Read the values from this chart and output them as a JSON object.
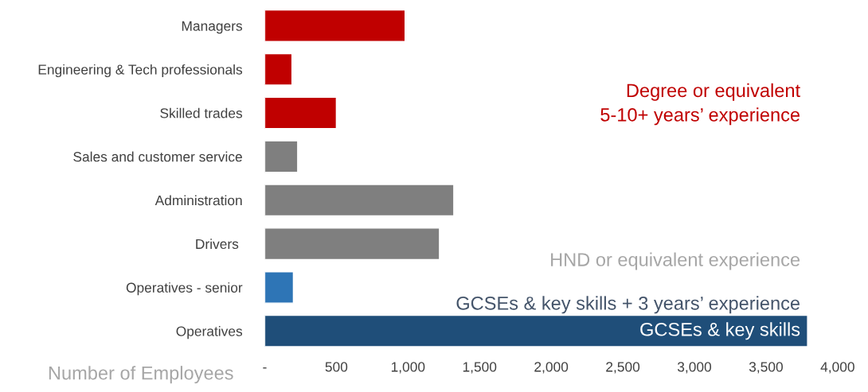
{
  "chart_data": {
    "type": "bar",
    "orientation": "horizontal",
    "categories": [
      "Managers",
      "Engineering & Tech professionals",
      "Skilled trades",
      "Sales and customer service",
      "Administration",
      "Drivers ",
      "Operatives - senior",
      "Operatives"
    ],
    "values": [
      980,
      190,
      500,
      230,
      1320,
      1220,
      200,
      3790
    ],
    "colors": [
      "#c00000",
      "#c00000",
      "#c00000",
      "#7f7f7f",
      "#7f7f7f",
      "#7f7f7f",
      "#2e75b6",
      "#1f4e79"
    ],
    "xlabel": "Number of Employees",
    "xlim": [
      0,
      4000
    ],
    "xticks": [
      {
        "value": 0,
        "label": "-"
      },
      {
        "value": 500,
        "label": "500"
      },
      {
        "value": 1000,
        "label": "1,000"
      },
      {
        "value": 1500,
        "label": "1,500"
      },
      {
        "value": 2000,
        "label": "2,000"
      },
      {
        "value": 2500,
        "label": "2,500"
      },
      {
        "value": 3000,
        "label": "3,000"
      },
      {
        "value": 3500,
        "label": "3,500"
      },
      {
        "value": 4000,
        "label": "4,000"
      }
    ],
    "annotations": [
      "Degree or equivalent\n5-10+ years’ experience",
      "HND or equivalent experience",
      "GCSEs & key skills + 3 years’ experience",
      "GCSEs & key skills"
    ],
    "grid": false
  }
}
